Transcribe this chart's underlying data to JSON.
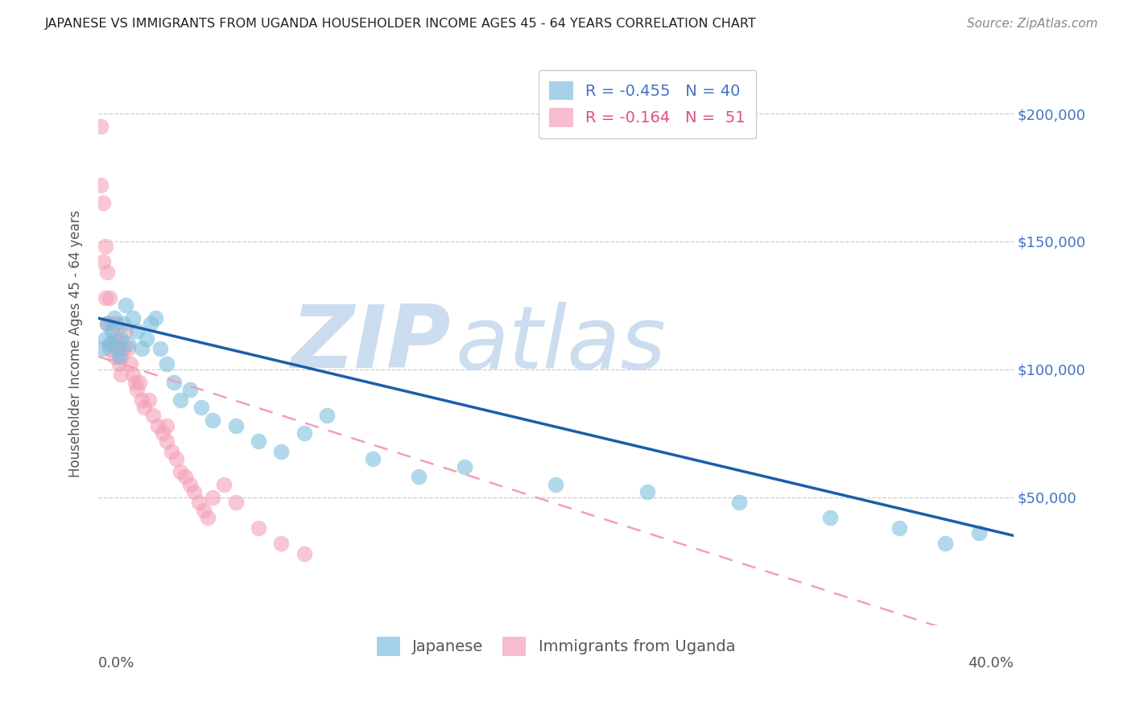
{
  "title": "JAPANESE VS IMMIGRANTS FROM UGANDA HOUSEHOLDER INCOME AGES 45 - 64 YEARS CORRELATION CHART",
  "source": "Source: ZipAtlas.com",
  "ylabel": "Householder Income Ages 45 - 64 years",
  "xlim": [
    0.0,
    0.4
  ],
  "ylim": [
    0,
    220000
  ],
  "yticks": [
    50000,
    100000,
    150000,
    200000
  ],
  "ytick_labels": [
    "$50,000",
    "$100,000",
    "$150,000",
    "$200,000"
  ],
  "xticks": [
    0.0,
    0.1,
    0.2,
    0.3,
    0.4
  ],
  "japanese_x": [
    0.002,
    0.003,
    0.004,
    0.005,
    0.006,
    0.007,
    0.008,
    0.009,
    0.01,
    0.011,
    0.012,
    0.013,
    0.015,
    0.017,
    0.019,
    0.021,
    0.023,
    0.025,
    0.027,
    0.03,
    0.033,
    0.036,
    0.04,
    0.045,
    0.05,
    0.06,
    0.07,
    0.08,
    0.09,
    0.1,
    0.12,
    0.14,
    0.16,
    0.2,
    0.24,
    0.28,
    0.32,
    0.35,
    0.37,
    0.385
  ],
  "japanese_y": [
    108000,
    112000,
    118000,
    110000,
    115000,
    120000,
    108000,
    105000,
    112000,
    118000,
    125000,
    110000,
    120000,
    115000,
    108000,
    112000,
    118000,
    120000,
    108000,
    102000,
    95000,
    88000,
    92000,
    85000,
    80000,
    78000,
    72000,
    68000,
    75000,
    82000,
    65000,
    58000,
    62000,
    55000,
    52000,
    48000,
    42000,
    38000,
    32000,
    36000
  ],
  "uganda_x": [
    0.001,
    0.001,
    0.002,
    0.002,
    0.003,
    0.003,
    0.004,
    0.004,
    0.005,
    0.005,
    0.006,
    0.006,
    0.007,
    0.007,
    0.008,
    0.008,
    0.009,
    0.009,
    0.01,
    0.01,
    0.011,
    0.012,
    0.013,
    0.014,
    0.015,
    0.016,
    0.017,
    0.018,
    0.019,
    0.02,
    0.022,
    0.024,
    0.026,
    0.028,
    0.03,
    0.03,
    0.032,
    0.034,
    0.036,
    0.038,
    0.04,
    0.042,
    0.044,
    0.046,
    0.048,
    0.05,
    0.055,
    0.06,
    0.07,
    0.08,
    0.09
  ],
  "uganda_y": [
    195000,
    172000,
    165000,
    142000,
    148000,
    128000,
    138000,
    118000,
    128000,
    108000,
    118000,
    110000,
    112000,
    105000,
    118000,
    112000,
    108000,
    102000,
    105000,
    98000,
    108000,
    115000,
    108000,
    102000,
    98000,
    95000,
    92000,
    95000,
    88000,
    85000,
    88000,
    82000,
    78000,
    75000,
    72000,
    78000,
    68000,
    65000,
    60000,
    58000,
    55000,
    52000,
    48000,
    45000,
    42000,
    50000,
    55000,
    48000,
    38000,
    32000,
    28000
  ],
  "japanese_R": -0.455,
  "japanese_N": 40,
  "uganda_R": -0.164,
  "uganda_N": 51,
  "japanese_color": "#7fbfdf",
  "uganda_color": "#f5a0b8",
  "japanese_line_color": "#1a5fa8",
  "uganda_line_color": "#f0a0b8",
  "background_color": "#ffffff",
  "watermark_color": "#ccddf0",
  "title_fontsize": 11.5,
  "source_fontsize": 11,
  "axis_label_fontsize": 12,
  "tick_fontsize": 13,
  "legend_fontsize": 14
}
